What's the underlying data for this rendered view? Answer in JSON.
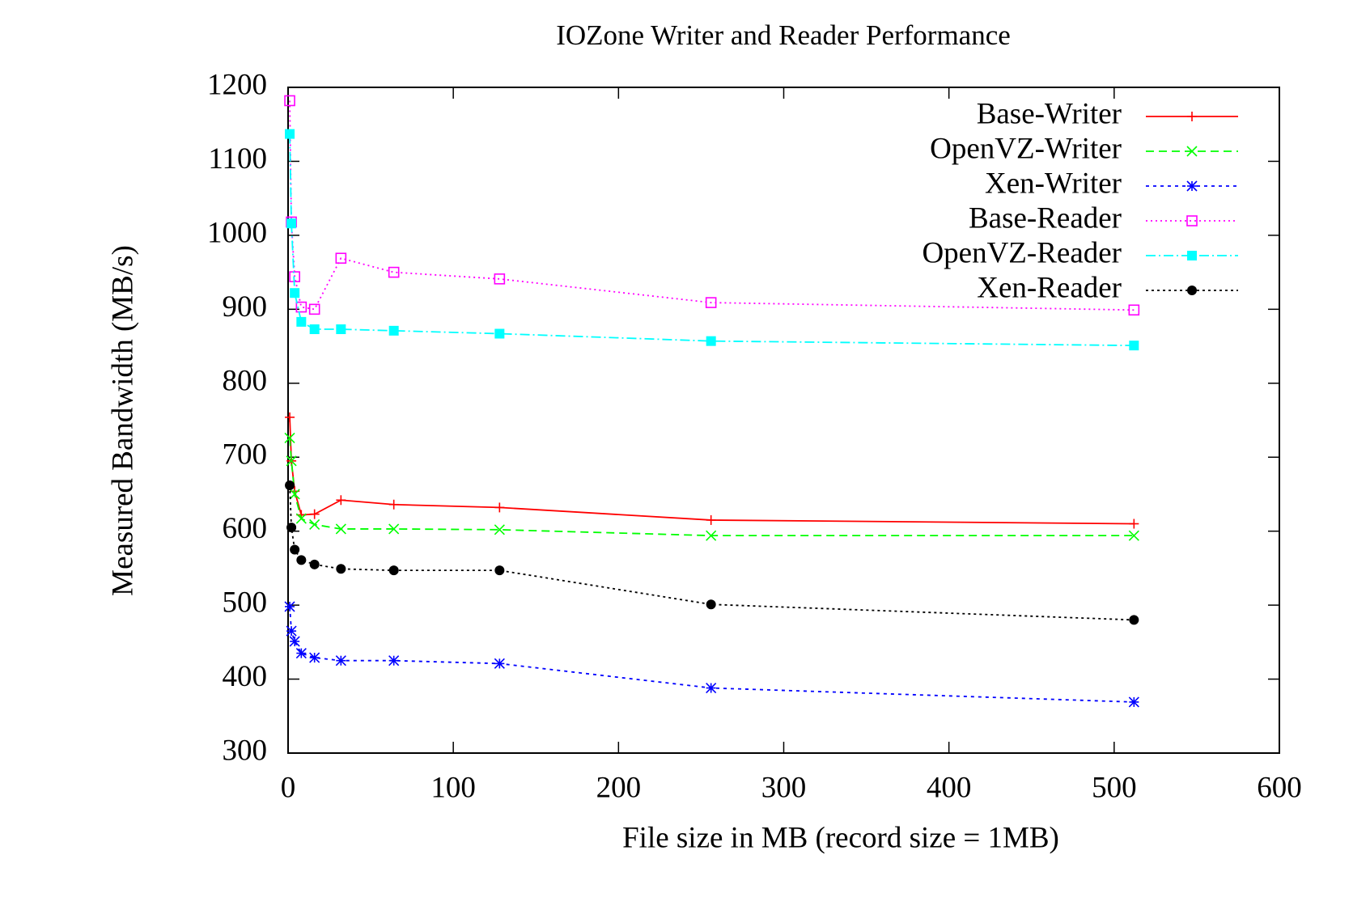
{
  "chart_data": {
    "type": "line",
    "title": "IOZone Writer and Reader Performance",
    "x_label": "File size in MB (record size = 1MB)",
    "y_label": "Measured Bandwidth (MB/s)",
    "x": [
      1,
      2,
      4,
      8,
      16,
      32,
      64,
      128,
      256,
      512
    ],
    "series": [
      {
        "name": "Base-Writer",
        "color": "#ff0000",
        "dash": "none",
        "marker": "plus",
        "values": [
          754,
          695,
          654,
          622,
          623,
          642,
          636,
          632,
          615,
          610
        ]
      },
      {
        "name": "OpenVZ-Writer",
        "color": "#00ff00",
        "dash": "10 6",
        "marker": "cross",
        "values": [
          726,
          695,
          650,
          617,
          609,
          603,
          603,
          602,
          594,
          594
        ]
      },
      {
        "name": "Xen-Writer",
        "color": "#0000ff",
        "dash": "4 5",
        "marker": "star",
        "values": [
          498,
          465,
          451,
          435,
          429,
          425,
          425,
          421,
          388,
          369
        ]
      },
      {
        "name": "Base-Reader",
        "color": "#ff00ff",
        "dash": "2 4",
        "marker": "open-square",
        "values": [
          1182,
          1018,
          944,
          903,
          900,
          969,
          950,
          941,
          909,
          899
        ]
      },
      {
        "name": "OpenVZ-Reader",
        "color": "#00ffff",
        "dash": "12 4 2 4",
        "marker": "filled-square",
        "values": [
          1137,
          1016,
          922,
          883,
          873,
          873,
          871,
          867,
          857,
          851
        ]
      },
      {
        "name": "Xen-Reader",
        "color": "#000000",
        "dash": "3 4",
        "marker": "filled-circle",
        "values": [
          662,
          605,
          575,
          561,
          555,
          549,
          547,
          547,
          501,
          480
        ]
      }
    ],
    "xlim": [
      0,
      600
    ],
    "xticks": [
      0,
      100,
      200,
      300,
      400,
      500,
      600
    ],
    "ylim": [
      300,
      1200
    ],
    "yticks": [
      300,
      400,
      500,
      600,
      700,
      800,
      900,
      1000,
      1100,
      1200
    ],
    "legend": "top-right"
  }
}
